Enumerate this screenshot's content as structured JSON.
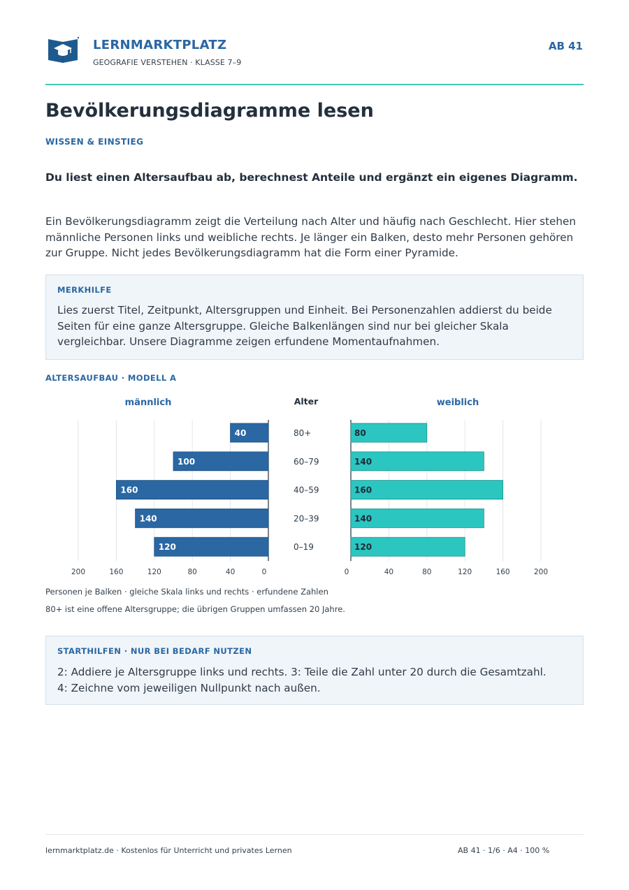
{
  "header": {
    "brand": "LERNMARKTPLATZ",
    "subtitle": "GEOGRAFIE VERSTEHEN · KLASSE 7–9",
    "sheet_id": "AB 41",
    "logo_icon": "graduation-cap-book-icon",
    "brand_color": "#2a67a3",
    "accent_color": "#46c7b7"
  },
  "title": "Bevölkerungsdiagramme lesen",
  "section_tag": "WISSEN & EINSTIEG",
  "lead": "Du liest einen Altersaufbau ab, berechnest Anteile und ergänzt ein eigenes Diagramm.",
  "intro": "Ein Bevölkerungsdiagramm zeigt die Verteilung nach Alter und häufig nach Geschlecht. Hier stehen männliche Personen links und weibliche rechts. Je länger ein Balken, desto mehr Personen gehören zur Gruppe. Nicht jedes Bevölkerungsdiagramm hat die Form einer Pyramide.",
  "merkhilfe": {
    "title": "MERKHILFE",
    "text": "Lies zuerst Titel, Zeitpunkt, Altersgruppen und Einheit. Bei Personenzahlen addierst du beide Seiten für eine ganze Altersgruppe. Gleiche Balkenlängen sind nur bei gleicher Skala vergleichbar. Unsere Diagramme zeigen erfundene Momentaufnahmen."
  },
  "chart_tag": "ALTERSAUFBAU · MODELL A",
  "chart_data": {
    "type": "bar",
    "orientation": "horizontal-pyramid",
    "center_label": "Alter",
    "categories": [
      "80+",
      "60–79",
      "40–59",
      "20–39",
      "0–19"
    ],
    "series": [
      {
        "name": "männlich",
        "side": "left",
        "color": "#2a67a3",
        "values": [
          40,
          100,
          160,
          140,
          120
        ]
      },
      {
        "name": "weiblich",
        "side": "right",
        "color": "#2cc6c1",
        "values": [
          80,
          140,
          160,
          140,
          120
        ]
      }
    ],
    "xlim": [
      0,
      200
    ],
    "ticks": [
      0,
      40,
      80,
      120,
      160,
      200
    ],
    "grid": true,
    "data_labels": true
  },
  "notes": [
    "Personen je Balken · gleiche Skala links und rechts · erfundene Zahlen",
    "80+ ist eine offene Altersgruppe; die übrigen Gruppen umfassen 20 Jahre."
  ],
  "starthilfen": {
    "title": "STARTHILFEN · NUR BEI BEDARF NUTZEN",
    "lines": [
      "2: Addiere je Altersgruppe links und rechts. 3: Teile die Zahl unter 20 durch die Gesamtzahl.",
      "4: Zeichne vom jeweiligen Nullpunkt nach außen."
    ]
  },
  "footer": {
    "left": "lernmarktplatz.de · Kostenlos für Unterricht und privates Lernen",
    "right": "AB 41 · 1/6 · A4 · 100 %"
  }
}
